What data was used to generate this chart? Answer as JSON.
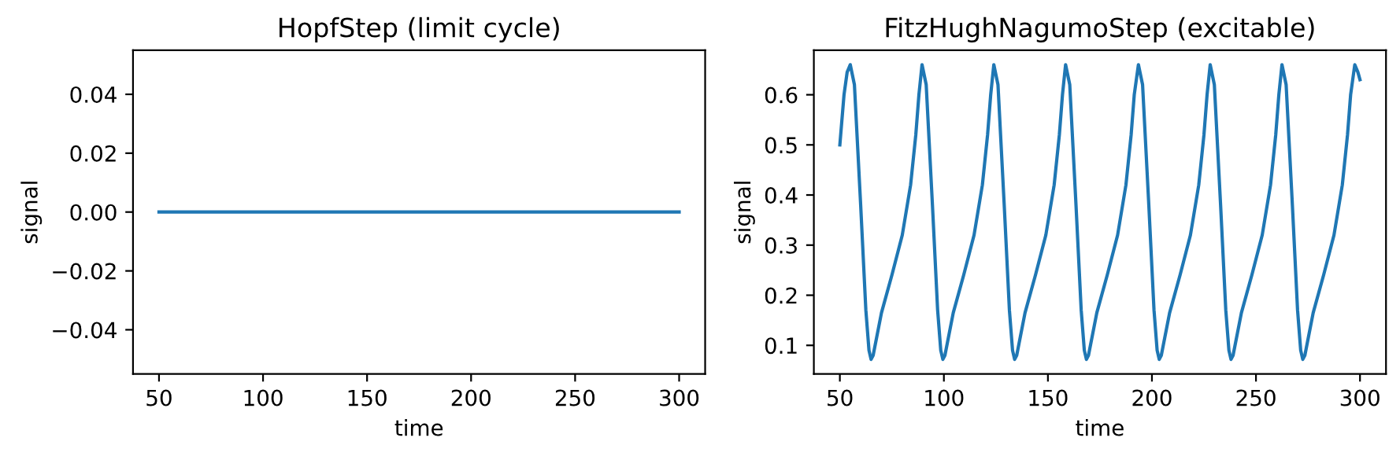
{
  "chart_data": [
    {
      "type": "line",
      "title": "HopfStep (limit cycle)",
      "xlabel": "time",
      "ylabel": "signal",
      "xlim": [
        37.5,
        312.5
      ],
      "xticks": [
        50,
        100,
        150,
        200,
        250,
        300
      ],
      "ylim": [
        -0.055,
        0.055
      ],
      "yticks": [
        {
          "value": -0.04,
          "label": "−0.04"
        },
        {
          "value": -0.02,
          "label": "−0.02"
        },
        {
          "value": 0,
          "label": "0.00"
        },
        {
          "value": 0.02,
          "label": "0.02"
        },
        {
          "value": 0.04,
          "label": "0.04"
        }
      ],
      "grid": false,
      "legend": false,
      "series": [
        {
          "color": "#1f77b4",
          "x": [
            50,
            300
          ],
          "values": [
            0,
            0
          ]
        }
      ]
    },
    {
      "type": "line",
      "title": "FitzHughNagumoStep (excitable)",
      "xlabel": "time",
      "ylabel": "signal",
      "xlim": [
        37.5,
        312.5
      ],
      "xticks": [
        50,
        100,
        150,
        200,
        250,
        300
      ],
      "ylim": [
        0.043,
        0.689
      ],
      "yticks": [
        0.1,
        0.2,
        0.3,
        0.4,
        0.5,
        0.6
      ],
      "grid": false,
      "legend": false,
      "series": [
        {
          "color": "#1f77b4",
          "x": [
            50,
            52,
            53.5,
            55,
            57,
            60,
            62.5,
            64,
            65,
            66,
            70,
            75,
            80,
            84,
            86.5,
            88,
            89.5,
            91.5,
            94.5,
            97,
            98.5,
            99.5,
            100.5,
            104.5,
            109.5,
            114.5,
            118.5,
            121,
            122.5,
            124,
            126,
            129,
            131.5,
            133,
            134,
            135,
            139,
            144,
            149,
            153,
            155.5,
            157,
            158.5,
            160.5,
            163.5,
            166,
            167.5,
            168.5,
            169.5,
            173.5,
            178.5,
            183.5,
            187.5,
            190,
            191.5,
            193.5,
            195.5,
            198.5,
            201,
            202.5,
            203.5,
            204.5,
            208.5,
            213.5,
            218.5,
            222.5,
            225,
            226.5,
            228,
            230,
            233,
            235.5,
            237,
            238,
            239,
            243,
            248,
            253,
            257,
            259.5,
            261,
            262.5,
            264.5,
            267.5,
            270,
            271.5,
            272.5,
            273.5,
            277.5,
            282.5,
            287.5,
            291.5,
            294,
            295.5,
            297.5,
            299,
            300
          ],
          "values": [
            0.5,
            0.6,
            0.645,
            0.66,
            0.62,
            0.38,
            0.17,
            0.09,
            0.072,
            0.08,
            0.165,
            0.24,
            0.32,
            0.42,
            0.52,
            0.6,
            0.66,
            0.62,
            0.38,
            0.17,
            0.09,
            0.072,
            0.08,
            0.165,
            0.24,
            0.32,
            0.42,
            0.52,
            0.6,
            0.66,
            0.62,
            0.38,
            0.17,
            0.09,
            0.072,
            0.08,
            0.165,
            0.24,
            0.32,
            0.42,
            0.52,
            0.6,
            0.66,
            0.62,
            0.38,
            0.17,
            0.09,
            0.072,
            0.08,
            0.165,
            0.24,
            0.32,
            0.42,
            0.52,
            0.6,
            0.66,
            0.62,
            0.38,
            0.17,
            0.09,
            0.072,
            0.08,
            0.165,
            0.24,
            0.32,
            0.42,
            0.52,
            0.6,
            0.66,
            0.62,
            0.38,
            0.17,
            0.09,
            0.072,
            0.08,
            0.165,
            0.24,
            0.32,
            0.42,
            0.52,
            0.6,
            0.66,
            0.62,
            0.38,
            0.17,
            0.09,
            0.072,
            0.08,
            0.165,
            0.24,
            0.32,
            0.42,
            0.52,
            0.6,
            0.66,
            0.645,
            0.63
          ]
        }
      ]
    }
  ]
}
